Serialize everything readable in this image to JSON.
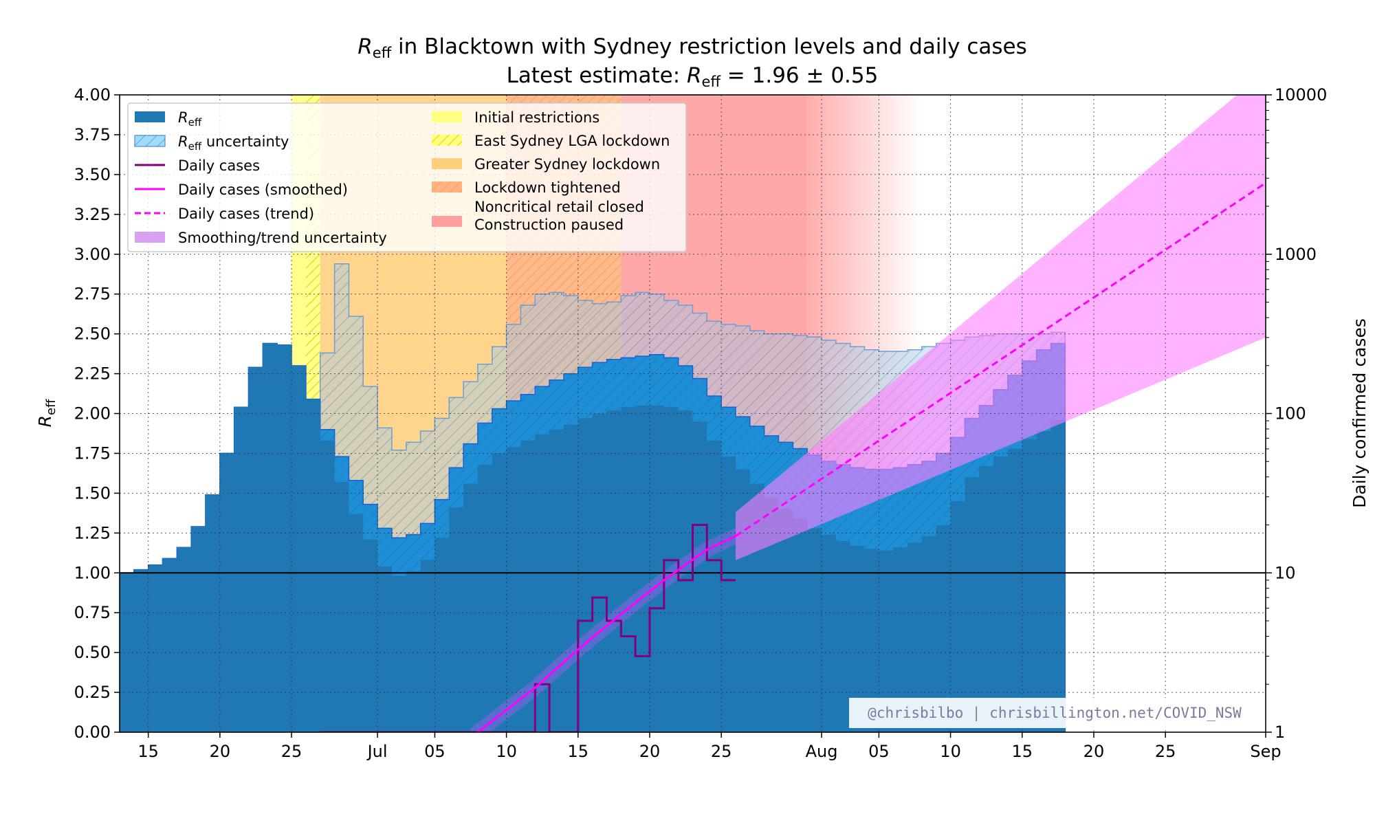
{
  "title": {
    "line1_prefix": "R",
    "line1_sub": "eff",
    "line1_rest": " in Blacktown with Sydney restriction levels and daily cases",
    "line2_prefix": "Latest estimate: ",
    "line2_r": "R",
    "line2_sub": "eff",
    "line2_rest": " = 1.96 ± 0.55"
  },
  "watermark": "@chrisbilbo | chrisbillington.net/COVID_NSW",
  "colors": {
    "reff": "#1f77b4",
    "reff_uncertainty": "#1e8fd6",
    "daily_cases": "#800080",
    "smoothed": "#ff00ff",
    "trend_band": "#ff7fff",
    "initial": "#ffff80",
    "east_sydney": "#ffff80",
    "greater_sydney": "#ffcf80",
    "tightened": "#ffb380",
    "noncritical": "#ff9f9f"
  },
  "chart_data": {
    "type": "line",
    "x_axis": {
      "start": "2021-06-13",
      "end": "2021-09-01",
      "tick_labels": [
        "15",
        "20",
        "25",
        "Jul",
        "05",
        "10",
        "15",
        "20",
        "25",
        "Aug",
        "05",
        "10",
        "15",
        "20",
        "25",
        "Sep"
      ],
      "tick_dates": [
        "2021-06-15",
        "2021-06-20",
        "2021-06-25",
        "2021-07-01",
        "2021-07-05",
        "2021-07-10",
        "2021-07-15",
        "2021-07-20",
        "2021-07-25",
        "2021-08-01",
        "2021-08-05",
        "2021-08-10",
        "2021-08-15",
        "2021-08-20",
        "2021-08-25",
        "2021-09-01"
      ]
    },
    "y_left": {
      "label_prefix": "R",
      "label_sub": "eff",
      "ylim": [
        0,
        4
      ],
      "ticks": [
        "0.00",
        "0.25",
        "0.50",
        "0.75",
        "1.00",
        "1.25",
        "1.50",
        "1.75",
        "2.00",
        "2.25",
        "2.50",
        "2.75",
        "3.00",
        "3.25",
        "3.50",
        "3.75",
        "4.00"
      ]
    },
    "y_right": {
      "label": "Daily confirmed cases",
      "scale": "log",
      "ylim": [
        1,
        10000
      ],
      "ticks": [
        "1",
        "10",
        "100",
        "1000",
        "10000"
      ]
    },
    "grid": true,
    "reference_line": 1.0,
    "restriction_periods": [
      {
        "key": "initial",
        "start": "2021-06-25",
        "end": "2021-06-26"
      },
      {
        "key": "east_sydney",
        "start": "2021-06-26",
        "end": "2021-06-27"
      },
      {
        "key": "greater_sydney",
        "start": "2021-06-27",
        "end": "2021-07-10"
      },
      {
        "key": "tightened",
        "start": "2021-07-10",
        "end": "2021-07-18"
      },
      {
        "key": "noncritical",
        "start": "2021-07-18",
        "end": "2021-07-31",
        "fade_to": "2021-08-08"
      }
    ],
    "reff_series": {
      "start": "2021-06-13",
      "values": [
        1.0,
        1.02,
        1.05,
        1.09,
        1.16,
        1.29,
        1.49,
        1.75,
        2.04,
        2.29,
        2.44,
        2.43,
        2.3,
        2.09,
        1.83,
        1.57,
        1.37,
        1.21,
        1.04,
        0.98,
        1.01,
        1.08,
        1.22,
        1.41,
        1.56,
        1.68,
        1.75,
        1.79,
        1.83,
        1.87,
        1.9,
        1.93,
        1.97,
        2.0,
        2.02,
        2.04,
        2.05,
        2.05,
        2.04,
        2.02,
        1.95,
        1.83,
        1.73,
        1.65,
        1.56,
        1.47,
        1.4,
        1.34,
        1.28,
        1.24,
        1.2,
        1.17,
        1.15,
        1.14,
        1.16,
        1.19,
        1.23,
        1.3,
        1.45,
        1.6,
        1.67,
        1.73,
        1.78,
        1.84,
        1.89,
        1.96
      ],
      "upper": [
        1.0,
        1.02,
        1.05,
        1.09,
        1.16,
        1.29,
        1.49,
        1.75,
        2.04,
        2.29,
        2.44,
        2.43,
        2.3,
        2.09,
        1.9,
        1.73,
        1.58,
        1.43,
        1.28,
        1.22,
        1.24,
        1.31,
        1.46,
        1.66,
        1.81,
        1.94,
        2.03,
        2.08,
        2.12,
        2.17,
        2.21,
        2.25,
        2.29,
        2.32,
        2.34,
        2.35,
        2.36,
        2.37,
        2.35,
        2.3,
        2.22,
        2.11,
        2.04,
        1.98,
        1.92,
        1.86,
        1.82,
        1.78,
        1.74,
        1.7,
        1.68,
        1.66,
        1.65,
        1.65,
        1.66,
        1.68,
        1.7,
        1.75,
        1.85,
        1.97,
        2.05,
        2.15,
        2.24,
        2.33,
        2.4,
        2.44
      ]
    },
    "reff_uncertainty_band": {
      "start": "2021-06-13",
      "lower": [
        1.0,
        1.02,
        1.05,
        1.09,
        1.16,
        1.29,
        1.49,
        1.75,
        2.04,
        2.29,
        2.44,
        2.43,
        2.3,
        2.09,
        1.82,
        1.58,
        1.38,
        1.24,
        1.03,
        1.0,
        1.03,
        1.1,
        1.26,
        1.41,
        1.56,
        1.68,
        1.76,
        1.8,
        1.84,
        1.88,
        1.91,
        1.95,
        1.98,
        2.01,
        2.04,
        2.05,
        2.05,
        2.04,
        2.02,
        1.95,
        1.83,
        1.73,
        1.65,
        1.55,
        1.47,
        1.4,
        1.35,
        1.29,
        1.25,
        1.21,
        1.18,
        1.16,
        1.15,
        1.15,
        1.17,
        1.2,
        1.26,
        1.41,
        1.6,
        1.68,
        1.74,
        1.8,
        1.86,
        1.92,
        1.98,
        2.0
      ],
      "upper": [
        1.0,
        1.02,
        1.05,
        1.09,
        1.16,
        1.29,
        1.49,
        1.75,
        2.04,
        2.29,
        2.44,
        2.43,
        2.3,
        2.09,
        2.38,
        2.94,
        2.61,
        2.17,
        1.91,
        1.77,
        1.82,
        1.89,
        1.97,
        2.1,
        2.2,
        2.31,
        2.42,
        2.56,
        2.68,
        2.75,
        2.76,
        2.74,
        2.71,
        2.69,
        2.7,
        2.74,
        2.76,
        2.75,
        2.71,
        2.68,
        2.63,
        2.58,
        2.56,
        2.55,
        2.52,
        2.5,
        2.5,
        2.49,
        2.48,
        2.46,
        2.44,
        2.42,
        2.4,
        2.39,
        2.39,
        2.4,
        2.42,
        2.44,
        2.46,
        2.48,
        2.49,
        2.5,
        2.5,
        2.5,
        2.5,
        2.51
      ]
    },
    "daily_cases": {
      "start": "2021-06-27",
      "values": [
        1,
        1,
        0,
        1,
        1,
        0,
        1,
        0,
        0,
        0,
        0,
        1,
        1,
        1,
        1,
        2,
        1,
        1,
        5,
        7,
        5,
        4,
        3,
        6,
        12,
        9,
        20,
        12,
        9
      ]
    },
    "smoothed_cases": {
      "points": [
        [
          "2021-07-08",
          1.0
        ],
        [
          "2021-07-12",
          1.9
        ],
        [
          "2021-07-15",
          3.3
        ],
        [
          "2021-07-18",
          5.5
        ],
        [
          "2021-07-21",
          9.0
        ],
        [
          "2021-07-24",
          14.0
        ],
        [
          "2021-07-26",
          17.0
        ]
      ]
    },
    "trend": {
      "points": [
        [
          "2021-07-26",
          17.0
        ],
        [
          "2021-09-01",
          2800
        ]
      ],
      "upper": [
        [
          "2021-07-26",
          24.0
        ],
        [
          "2021-08-30",
          10000
        ]
      ],
      "lower": [
        [
          "2021-07-26",
          12.0
        ],
        [
          "2021-09-01",
          300
        ]
      ]
    },
    "legend": {
      "placement": "upper-left",
      "left_column": [
        {
          "key": "reff",
          "label_prefix": "R",
          "label_sub": "eff",
          "label_rest": ""
        },
        {
          "key": "reff_uncertainty",
          "label_prefix": "R",
          "label_sub": "eff",
          "label_rest": " uncertainty"
        },
        {
          "key": "daily_cases",
          "label_prefix": "",
          "label_sub": "",
          "label_rest": "Daily cases"
        },
        {
          "key": "smoothed",
          "label_prefix": "",
          "label_sub": "",
          "label_rest": "Daily cases (smoothed)"
        },
        {
          "key": "trend_line",
          "label_prefix": "",
          "label_sub": "",
          "label_rest": "Daily cases (trend)"
        },
        {
          "key": "trend_band",
          "label_prefix": "",
          "label_sub": "",
          "label_rest": "Smoothing/trend uncertainty"
        }
      ],
      "right_column": [
        {
          "key": "initial",
          "label": "Initial restrictions"
        },
        {
          "key": "east_sydney",
          "label": "East Sydney LGA lockdown"
        },
        {
          "key": "greater_sydney",
          "label": "Greater Sydney lockdown"
        },
        {
          "key": "tightened",
          "label": "Lockdown tightened"
        },
        {
          "key": "noncritical",
          "label": "Noncritical retail closed",
          "label2": "Construction paused"
        }
      ]
    }
  }
}
